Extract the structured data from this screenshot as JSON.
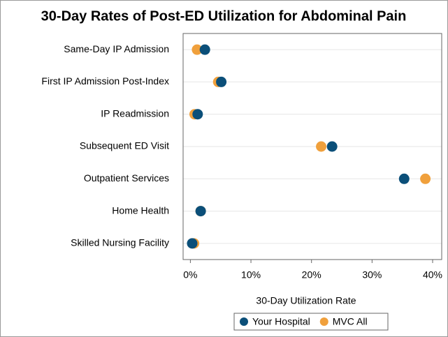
{
  "chart_data": {
    "type": "dot",
    "title": "30-Day Rates of Post-ED Utilization for Abdominal Pain",
    "xlabel": "30-Day Utilization Rate",
    "categories": [
      "Same-Day IP Admission",
      "First IP Admission Post-Index",
      "IP Readmission",
      "Subsequent ED Visit",
      "Outpatient Services",
      "Home Health",
      "Skilled Nursing Facility"
    ],
    "series": [
      {
        "name": "MVC All",
        "color": "#f0a03c",
        "values": [
          1.1,
          4.6,
          0.7,
          21.6,
          38.8,
          1.7,
          0.6
        ]
      },
      {
        "name": "Your Hospital",
        "color": "#0b4f79",
        "values": [
          2.4,
          5.1,
          1.2,
          23.4,
          35.3,
          1.7,
          0.3
        ]
      }
    ],
    "legend_order": [
      "Your Hospital",
      "MVC All"
    ],
    "xlim": [
      -1.2,
      41.5
    ],
    "xticks": [
      {
        "value": 0,
        "label": "0%"
      },
      {
        "value": 10,
        "label": "10%"
      },
      {
        "value": 20,
        "label": "20%"
      },
      {
        "value": 30,
        "label": "30%"
      },
      {
        "value": 40,
        "label": "40%"
      }
    ],
    "grid": true,
    "legend": "bottom"
  }
}
